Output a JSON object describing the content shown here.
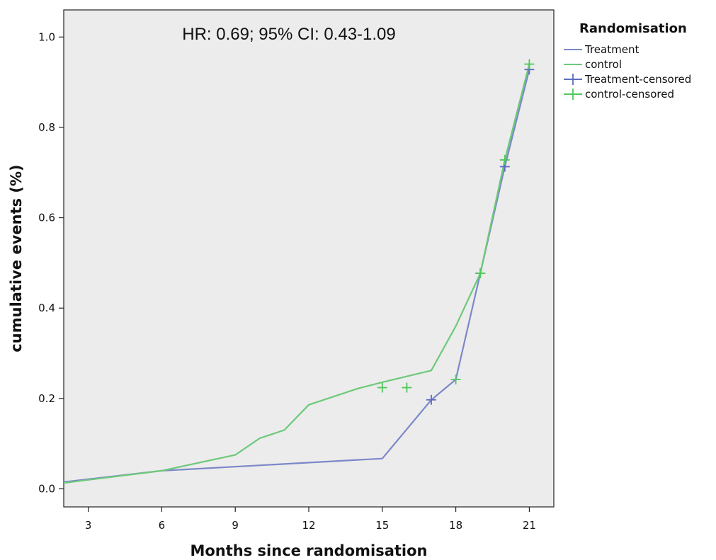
{
  "chart_data": {
    "type": "line",
    "title": "",
    "annotation": "HR: 0.69; 95% CI: 0.43-1.09",
    "xlabel": "Months since randomisation",
    "ylabel": "cumulative events (%)",
    "xlim": [
      2,
      22
    ],
    "ylim": [
      -0.04,
      1.06
    ],
    "xticks": [
      3,
      6,
      9,
      12,
      15,
      18,
      21
    ],
    "yticks": [
      0.0,
      0.2,
      0.4,
      0.6,
      0.8,
      1.0
    ],
    "xtick_labels": [
      "3",
      "6",
      "9",
      "12",
      "15",
      "18",
      "21"
    ],
    "ytick_labels": [
      "0.0",
      "0.2",
      "0.4",
      "0.6",
      "0.8",
      "1.0"
    ],
    "grid": false,
    "legend_placement": "right-top",
    "legend_title": "Randomisation",
    "colors": {
      "treatment": "#7b88c8",
      "control": "#6dc97a",
      "plot_bg": "#ececec"
    },
    "series": [
      {
        "name": "Treatment",
        "color": "#7b88c8",
        "x": [
          2,
          6,
          15,
          17,
          18,
          19,
          20,
          21
        ],
        "y": [
          0.015,
          0.04,
          0.067,
          0.197,
          0.242,
          0.477,
          0.713,
          0.928
        ]
      },
      {
        "name": "control",
        "color": "#6dc97a",
        "x": [
          2,
          6,
          9,
          10,
          11,
          12,
          14,
          15,
          17,
          18,
          19,
          20,
          21
        ],
        "y": [
          0.013,
          0.04,
          0.075,
          0.112,
          0.13,
          0.186,
          0.222,
          0.236,
          0.262,
          0.36,
          0.477,
          0.728,
          0.94
        ]
      }
    ],
    "censored": [
      {
        "name": "Treatment-censored",
        "color": "#5e6cbf",
        "x": [
          17,
          19,
          20,
          21
        ],
        "y": [
          0.197,
          0.477,
          0.713,
          0.928
        ]
      },
      {
        "name": "control-censored",
        "color": "#4fc85a",
        "x": [
          15,
          16,
          18,
          19,
          20,
          21
        ],
        "y": [
          0.224,
          0.224,
          0.242,
          0.477,
          0.728,
          0.94
        ]
      }
    ]
  }
}
